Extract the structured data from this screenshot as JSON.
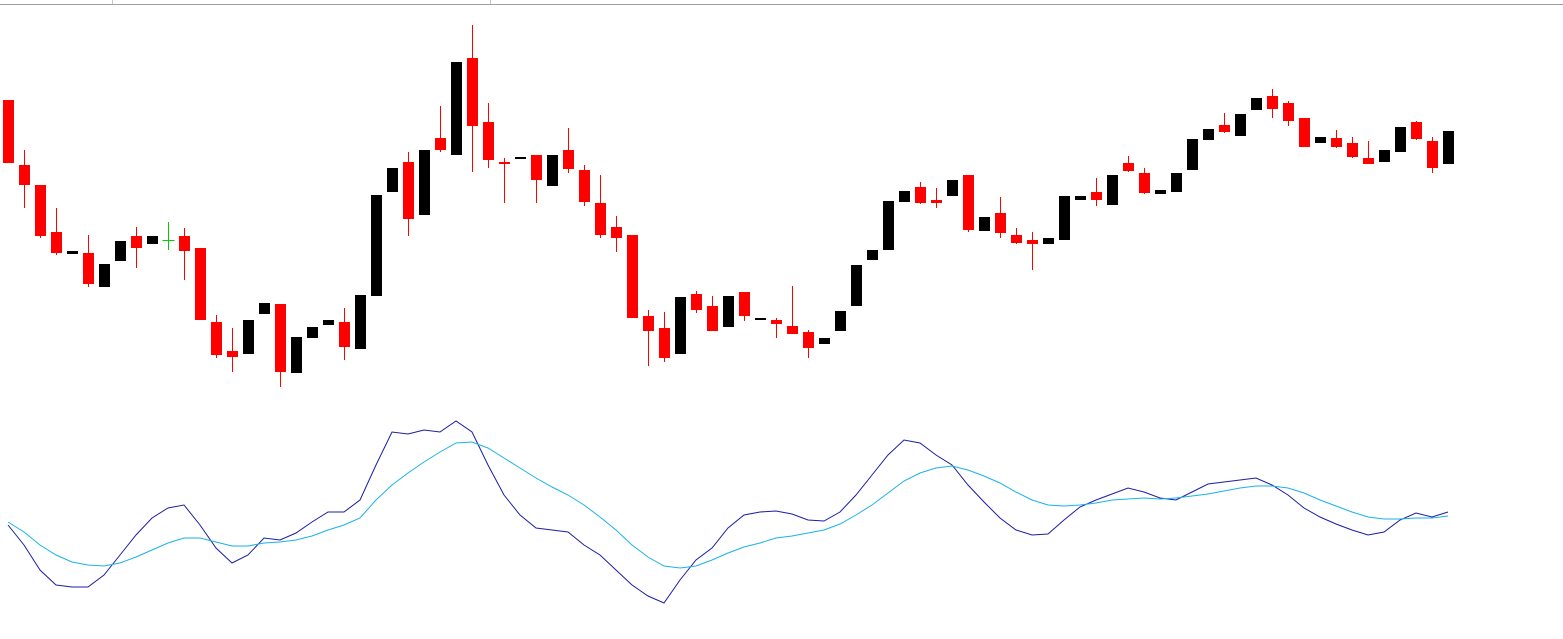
{
  "chart_data": [
    {
      "type": "candlestick",
      "bull_color": "#000000",
      "bear_color": "#ff0000",
      "doji_color": "#00cc00",
      "ylim": [
        0,
        400
      ],
      "open": [
        300,
        235,
        215,
        168,
        146,
        147,
        113,
        139,
        164,
        156,
        160,
        164,
        152,
        78,
        49,
        46,
        86,
        96,
        27,
        62,
        75,
        78,
        51,
        104,
        208,
        238,
        185,
        262,
        245,
        342,
        278,
        238,
        241,
        245,
        214,
        250,
        230,
        197,
        173,
        165,
        84,
        72,
        46,
        106,
        94,
        73,
        108,
        80,
        80,
        74,
        68,
        56,
        69,
        94,
        140,
        150,
        198,
        213,
        200,
        204,
        225,
        169,
        187,
        165,
        160,
        156,
        160,
        200,
        208,
        195,
        237,
        227,
        206,
        208,
        230,
        260,
        275,
        264,
        290,
        304,
        297,
        282,
        257,
        262,
        257,
        242,
        238,
        248,
        278,
        259,
        236
      ],
      "high": [
        300,
        250,
        215,
        192,
        149,
        165,
        136,
        159,
        173,
        164,
        178,
        172,
        152,
        85,
        72,
        80,
        97,
        96,
        63,
        73,
        80,
        92,
        105,
        205,
        232,
        248,
        250,
        294,
        338,
        375,
        297,
        242,
        243,
        245,
        245,
        272,
        235,
        225,
        184,
        165,
        90,
        88,
        103,
        109,
        104,
        104,
        108,
        82,
        82,
        114,
        70,
        62,
        89,
        135,
        150,
        199,
        209,
        218,
        212,
        220,
        225,
        183,
        203,
        172,
        168,
        162,
        204,
        204,
        222,
        225,
        244,
        232,
        210,
        227,
        261,
        271,
        287,
        286,
        302,
        311,
        299,
        282,
        263,
        270,
        263,
        259,
        250,
        273,
        279,
        263,
        269
      ],
      "low": [
        237,
        192,
        162,
        145,
        146,
        113,
        113,
        139,
        132,
        156,
        150,
        120,
        80,
        42,
        28,
        46,
        86,
        13,
        27,
        62,
        75,
        40,
        51,
        104,
        208,
        164,
        185,
        248,
        245,
        228,
        232,
        197,
        241,
        197,
        214,
        227,
        194,
        162,
        148,
        82,
        34,
        38,
        46,
        87,
        69,
        73,
        79,
        80,
        62,
        66,
        42,
        56,
        69,
        94,
        140,
        150,
        198,
        196,
        192,
        204,
        168,
        169,
        162,
        156,
        130,
        156,
        160,
        200,
        194,
        195,
        228,
        206,
        206,
        208,
        230,
        260,
        267,
        264,
        290,
        282,
        274,
        253,
        257,
        252,
        242,
        236,
        238,
        248,
        260,
        227,
        236
      ],
      "close": [
        237,
        215,
        164,
        147,
        149,
        116,
        136,
        159,
        152,
        164,
        160,
        149,
        80,
        45,
        43,
        80,
        97,
        28,
        63,
        73,
        80,
        53,
        105,
        205,
        232,
        181,
        250,
        250,
        338,
        274,
        240,
        236,
        243,
        220,
        245,
        231,
        198,
        165,
        162,
        82,
        69,
        42,
        103,
        90,
        69,
        104,
        84,
        82,
        76,
        66,
        52,
        62,
        89,
        135,
        150,
        199,
        209,
        197,
        197,
        220,
        170,
        183,
        167,
        157,
        156,
        162,
        204,
        204,
        200,
        225,
        229,
        207,
        210,
        227,
        261,
        271,
        268,
        286,
        302,
        291,
        279,
        253,
        263,
        253,
        243,
        236,
        250,
        273,
        261,
        232,
        269
      ]
    },
    {
      "type": "line",
      "ylim": [
        0,
        200
      ],
      "series": [
        {
          "color": "#1c1caa",
          "values": [
            95,
            75,
            50,
            35,
            33,
            33,
            45,
            65,
            85,
            102,
            112,
            115,
            95,
            72,
            57,
            65,
            82,
            80,
            87,
            98,
            108,
            108,
            120,
            155,
            188,
            186,
            190,
            188,
            199,
            188,
            155,
            125,
            105,
            92,
            90,
            88,
            75,
            65,
            50,
            35,
            24,
            17,
            40,
            60,
            72,
            92,
            105,
            108,
            109,
            106,
            100,
            99,
            108,
            125,
            145,
            165,
            180,
            177,
            165,
            155,
            135,
            118,
            102,
            90,
            85,
            86,
            100,
            113,
            120,
            126,
            132,
            128,
            122,
            120,
            128,
            136,
            138,
            140,
            142,
            135,
            125,
            112,
            103,
            96,
            90,
            85,
            88,
            100,
            107,
            103,
            108
          ]
        },
        {
          "color": "#1ab2e8",
          "values": [
            98,
            88,
            75,
            65,
            58,
            55,
            54,
            57,
            63,
            70,
            77,
            82,
            82,
            78,
            74,
            74,
            77,
            78,
            80,
            84,
            90,
            95,
            102,
            120,
            135,
            147,
            158,
            168,
            177,
            178,
            172,
            162,
            152,
            142,
            133,
            125,
            115,
            103,
            90,
            75,
            63,
            54,
            52,
            54,
            60,
            67,
            73,
            77,
            82,
            84,
            87,
            90,
            96,
            105,
            115,
            127,
            139,
            147,
            152,
            154,
            150,
            144,
            137,
            128,
            120,
            115,
            114,
            115,
            117,
            120,
            121,
            122,
            121,
            122,
            124,
            126,
            129,
            132,
            134,
            134,
            132,
            127,
            120,
            114,
            108,
            103,
            101,
            101,
            102,
            102,
            104
          ]
        }
      ]
    }
  ]
}
